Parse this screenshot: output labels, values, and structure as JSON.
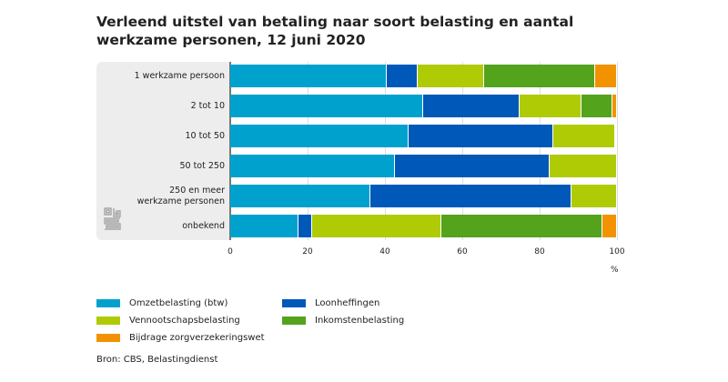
{
  "title_line1": "Verleend uitstel van betaling naar soort belasting en aantal",
  "title_line2": "werkzame personen, 12 juni 2020",
  "source": "Bron: CBS, Belastingdienst",
  "logo_text": "cbs",
  "chart_data": {
    "type": "bar",
    "orientation": "horizontal",
    "stacked": true,
    "categories": [
      "1 werkzame persoon",
      "2 tot 10",
      "10 tot 50",
      "50 tot 250",
      "250 en meer werkzame personen",
      "onbekend"
    ],
    "category_lines": [
      [
        "1 werkzame persoon"
      ],
      [
        "2 tot 10"
      ],
      [
        "10 tot 50"
      ],
      [
        "50 tot 250"
      ],
      [
        "250 en meer",
        "werkzame personen"
      ],
      [
        "onbekend"
      ]
    ],
    "series": [
      {
        "name": "Omzetbelasting (btw)",
        "color": "#00a1cd",
        "values": [
          40.5,
          49.9,
          46.0,
          42.7,
          36.3,
          17.6
        ]
      },
      {
        "name": "Loonheffingen",
        "color": "#0058b8",
        "values": [
          7.9,
          24.9,
          37.5,
          40.0,
          51.9,
          3.6
        ]
      },
      {
        "name": "Vennootschapsbelasting",
        "color": "#afcb05",
        "values": [
          17.2,
          16.0,
          16.0,
          17.3,
          11.8,
          33.4
        ]
      },
      {
        "name": "Inkomstenbelasting",
        "color": "#53a31d",
        "values": [
          28.8,
          8.0,
          0.3,
          0,
          0,
          41.7
        ]
      },
      {
        "name": "Bijdrage zorgverzekeringswet",
        "color": "#f39200",
        "values": [
          5.6,
          1.2,
          0.2,
          0,
          0,
          3.7
        ]
      }
    ],
    "legend_order": [
      0,
      1,
      2,
      3,
      4
    ],
    "xlim": [
      0,
      100
    ],
    "xticks": [
      "0",
      "20",
      "40",
      "60",
      "80",
      "100"
    ],
    "xlabel": "%",
    "grid": true,
    "legend_placement": "bottom-left"
  }
}
